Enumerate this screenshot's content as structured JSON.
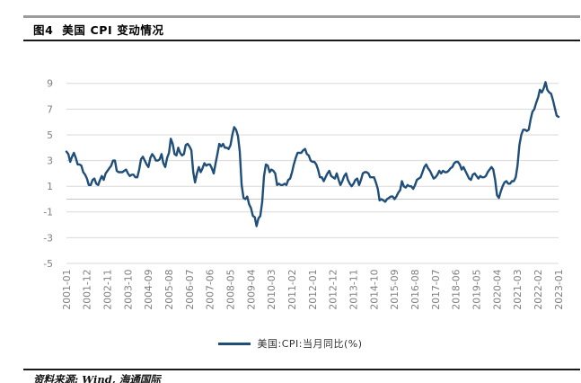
{
  "header": {
    "title": "图4  美国 CPI 变动情况"
  },
  "legend": {
    "label": "美国:CPI:当月同比(%)"
  },
  "footer": {
    "source": "资料来源: Wind, 海通国际"
  },
  "colors": {
    "line": "#1f4e79",
    "grid": "#d9d9d9",
    "zero_axis": "#c6c6c6",
    "tick_text": "#7f7f7f",
    "header_rule_gray": "#9c9c9c",
    "rule_black": "#1a1a1a"
  },
  "chart_data": {
    "type": "line",
    "title": "美国 CPI 变动情况",
    "xlabel": "",
    "ylabel": "",
    "x_start": "2001-01",
    "x_end": "2023-01",
    "frequency": "monthly",
    "x_tick_step_months": 11,
    "x_tick_labels": [
      "2001-01",
      "2001-12",
      "2002-11",
      "2003-10",
      "2004-09",
      "2005-08",
      "2006-07",
      "2007-06",
      "2008-05",
      "2009-04",
      "2010-03",
      "2011-02",
      "2012-01",
      "2012-12",
      "2013-11",
      "2014-10",
      "2015-09",
      "2016-08",
      "2017-07",
      "2018-06",
      "2019-05",
      "2020-04",
      "2021-03",
      "2022-02",
      "2023-01"
    ],
    "y_ticks": [
      9,
      7,
      5,
      3,
      1,
      -1,
      -3,
      -5
    ],
    "ylim": [
      -5,
      9.5
    ],
    "grid": true,
    "legend_position": "bottom",
    "series": [
      {
        "name": "美国:CPI:当月同比(%)",
        "color": "#1f4e79",
        "values": [
          3.7,
          3.5,
          2.9,
          3.3,
          3.6,
          3.2,
          2.7,
          2.7,
          2.6,
          2.1,
          1.9,
          1.6,
          1.1,
          1.1,
          1.5,
          1.6,
          1.2,
          1.1,
          1.5,
          1.8,
          1.5,
          2.0,
          2.2,
          2.4,
          2.6,
          3.0,
          3.0,
          2.2,
          2.1,
          2.1,
          2.1,
          2.2,
          2.3,
          2.0,
          1.8,
          1.9,
          1.9,
          1.7,
          1.7,
          2.3,
          3.1,
          3.3,
          3.0,
          2.7,
          2.5,
          3.2,
          3.5,
          3.3,
          3.0,
          3.0,
          3.1,
          3.5,
          2.8,
          2.5,
          3.2,
          3.6,
          4.7,
          4.3,
          3.5,
          3.4,
          4.0,
          3.6,
          3.4,
          3.5,
          4.2,
          4.3,
          4.1,
          3.8,
          2.1,
          1.3,
          2.0,
          2.5,
          2.1,
          2.4,
          2.8,
          2.6,
          2.7,
          2.7,
          2.4,
          2.0,
          2.8,
          3.5,
          4.3,
          4.1,
          4.3,
          4.0,
          4.0,
          3.9,
          4.2,
          5.0,
          5.6,
          5.4,
          4.9,
          3.7,
          1.1,
          0.1,
          0.0,
          0.2,
          -0.4,
          -0.7,
          -1.3,
          -1.4,
          -2.1,
          -1.5,
          -1.3,
          -0.2,
          1.8,
          2.7,
          2.6,
          2.1,
          2.3,
          2.2,
          2.0,
          1.1,
          1.2,
          1.1,
          1.1,
          1.2,
          1.1,
          1.5,
          1.6,
          2.1,
          2.7,
          3.2,
          3.6,
          3.6,
          3.6,
          3.8,
          3.9,
          3.5,
          3.4,
          3.0,
          2.9,
          2.9,
          2.7,
          2.3,
          1.7,
          1.7,
          1.4,
          1.7,
          2.0,
          2.2,
          1.8,
          1.7,
          1.6,
          2.0,
          1.5,
          1.1,
          1.4,
          1.8,
          2.0,
          1.5,
          1.2,
          1.0,
          1.2,
          1.5,
          1.6,
          1.1,
          1.5,
          2.0,
          2.1,
          2.1,
          2.0,
          1.7,
          1.7,
          1.7,
          1.3,
          0.8,
          -0.1,
          0.0,
          -0.1,
          -0.2,
          0.0,
          0.1,
          0.2,
          0.2,
          0.0,
          0.2,
          0.5,
          0.7,
          1.4,
          1.0,
          0.9,
          1.1,
          1.0,
          1.0,
          0.8,
          1.1,
          1.5,
          1.6,
          1.7,
          2.1,
          2.5,
          2.7,
          2.4,
          2.2,
          1.9,
          1.6,
          1.7,
          1.9,
          2.2,
          2.0,
          2.2,
          2.1,
          2.1,
          2.2,
          2.4,
          2.5,
          2.8,
          2.9,
          2.9,
          2.7,
          2.3,
          2.5,
          2.2,
          1.9,
          1.6,
          1.5,
          1.9,
          2.0,
          1.8,
          1.6,
          1.8,
          1.7,
          1.7,
          1.8,
          2.1,
          2.3,
          2.5,
          2.3,
          1.5,
          0.3,
          0.1,
          0.6,
          1.0,
          1.3,
          1.4,
          1.2,
          1.2,
          1.4,
          1.4,
          1.7,
          2.6,
          4.2,
          5.0,
          5.4,
          5.4,
          5.3,
          5.4,
          6.2,
          6.8,
          7.0,
          7.5,
          7.9,
          8.5,
          8.3,
          8.6,
          9.1,
          8.5,
          8.3,
          8.2,
          7.7,
          7.1,
          6.5,
          6.4
        ]
      }
    ]
  }
}
